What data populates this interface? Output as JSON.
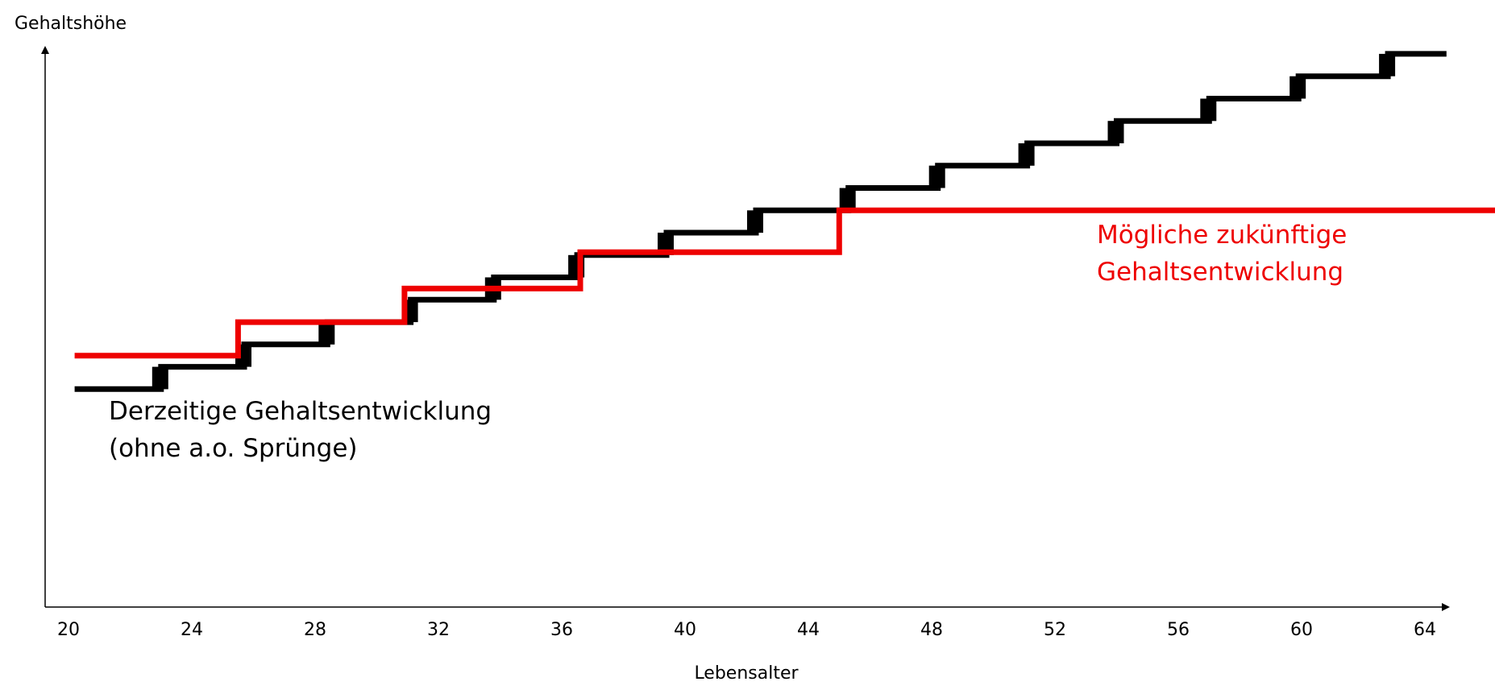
{
  "chart_data": {
    "type": "line",
    "title": "",
    "xlabel": "Lebensalter",
    "ylabel": "Gehaltshöhe",
    "xlim": [
      20,
      64
    ],
    "ylim": [
      0,
      100
    ],
    "x_ticks": [
      20,
      24,
      28,
      32,
      36,
      40,
      44,
      48,
      52,
      56,
      60,
      64
    ],
    "y_ticks_shown": false,
    "grid": false,
    "legend": "none",
    "series": [
      {
        "color": "#000000",
        "style": "step",
        "points": [
          {
            "x": 20.2,
            "y": 39.0
          },
          {
            "x": 23.0,
            "y": 39.0
          },
          {
            "x": 23.0,
            "y": 43.0
          },
          {
            "x": 25.7,
            "y": 43.0
          },
          {
            "x": 25.7,
            "y": 47.0
          },
          {
            "x": 28.4,
            "y": 47.0
          },
          {
            "x": 28.4,
            "y": 51.0
          },
          {
            "x": 31.1,
            "y": 51.0
          },
          {
            "x": 31.1,
            "y": 55.0
          },
          {
            "x": 33.8,
            "y": 55.0
          },
          {
            "x": 33.8,
            "y": 59.0
          },
          {
            "x": 36.5,
            "y": 59.0
          },
          {
            "x": 36.5,
            "y": 63.0
          },
          {
            "x": 39.4,
            "y": 63.0
          },
          {
            "x": 39.4,
            "y": 67.0
          },
          {
            "x": 42.3,
            "y": 67.0
          },
          {
            "x": 42.3,
            "y": 71.0
          },
          {
            "x": 45.3,
            "y": 71.0
          },
          {
            "x": 45.3,
            "y": 75.0
          },
          {
            "x": 48.2,
            "y": 75.0
          },
          {
            "x": 48.2,
            "y": 79.0
          },
          {
            "x": 51.1,
            "y": 79.0
          },
          {
            "x": 51.1,
            "y": 83.0
          },
          {
            "x": 54.0,
            "y": 83.0
          },
          {
            "x": 54.0,
            "y": 87.0
          },
          {
            "x": 57.0,
            "y": 87.0
          },
          {
            "x": 57.0,
            "y": 91.0
          },
          {
            "x": 59.9,
            "y": 91.0
          },
          {
            "x": 59.9,
            "y": 95.0
          },
          {
            "x": 62.8,
            "y": 95.0
          },
          {
            "x": 62.8,
            "y": 99.0
          },
          {
            "x": 64.7,
            "y": 99.0
          }
        ]
      },
      {
        "color": "#ee0000",
        "style": "step",
        "points": [
          {
            "x": 20.2,
            "y": 45.0
          },
          {
            "x": 25.5,
            "y": 45.0
          },
          {
            "x": 25.5,
            "y": 51.0
          },
          {
            "x": 30.9,
            "y": 51.0
          },
          {
            "x": 30.9,
            "y": 57.0
          },
          {
            "x": 36.6,
            "y": 57.0
          },
          {
            "x": 36.6,
            "y": 63.5
          },
          {
            "x": 45.0,
            "y": 63.5
          },
          {
            "x": 45.0,
            "y": 71.0
          },
          {
            "x": 66.5,
            "y": 71.0
          }
        ]
      }
    ],
    "annotations": [
      {
        "lines": [
          "Derzeitige Gehaltsentwicklung",
          "(ohne a.o. Sprünge)"
        ],
        "color": "#000000"
      },
      {
        "lines": [
          "Mögliche zukünftige",
          "Gehaltsentwicklung"
        ],
        "color": "#ee0000"
      }
    ]
  }
}
